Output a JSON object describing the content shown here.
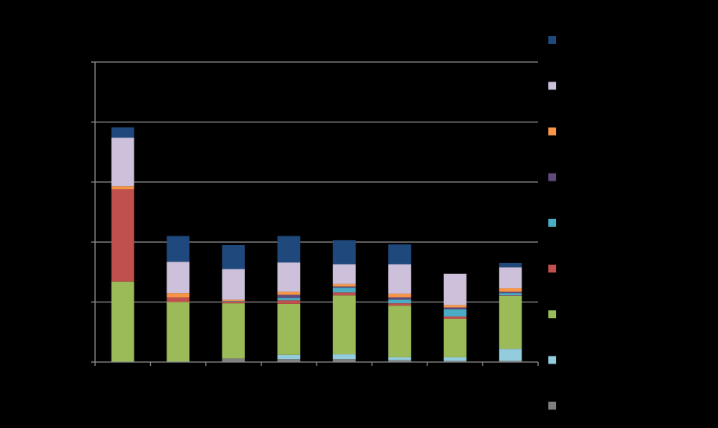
{
  "chart_data": {
    "type": "bar",
    "stacked": true,
    "title": "",
    "xlabel": "",
    "ylabel": "",
    "ylim": [
      0,
      5
    ],
    "grid": true,
    "legend_position": "right",
    "categories": [
      "",
      "",
      "",
      "",
      "",
      "",
      "",
      ""
    ],
    "series": [
      {
        "color": "#7f7f7f",
        "values": [
          0.0,
          0.0,
          0.06,
          0.05,
          0.05,
          0.03,
          0.02,
          0.02
        ]
      },
      {
        "color": "#93cddd",
        "values": [
          0.0,
          0.0,
          0.0,
          0.07,
          0.08,
          0.05,
          0.06,
          0.2
        ]
      },
      {
        "color": "#9bbb59",
        "values": [
          1.34,
          1.0,
          0.92,
          0.85,
          0.98,
          0.86,
          0.64,
          0.88
        ]
      },
      {
        "color": "#c0504d",
        "values": [
          1.54,
          0.08,
          0.03,
          0.06,
          0.05,
          0.04,
          0.04,
          0.01
        ]
      },
      {
        "color": "#4bacc6",
        "values": [
          0.0,
          0.0,
          0.01,
          0.04,
          0.08,
          0.06,
          0.12,
          0.04
        ]
      },
      {
        "color": "#604a7b",
        "values": [
          0.0,
          0.0,
          0.0,
          0.05,
          0.02,
          0.04,
          0.03,
          0.02
        ]
      },
      {
        "color": "#f79646",
        "values": [
          0.05,
          0.07,
          0.02,
          0.05,
          0.04,
          0.06,
          0.04,
          0.06
        ]
      },
      {
        "color": "#ccc0da",
        "values": [
          0.81,
          0.52,
          0.51,
          0.49,
          0.33,
          0.49,
          0.52,
          0.35
        ]
      },
      {
        "color": "#1f497d",
        "values": [
          0.17,
          0.43,
          0.4,
          0.44,
          0.4,
          0.33,
          0.0,
          0.07
        ]
      }
    ]
  }
}
